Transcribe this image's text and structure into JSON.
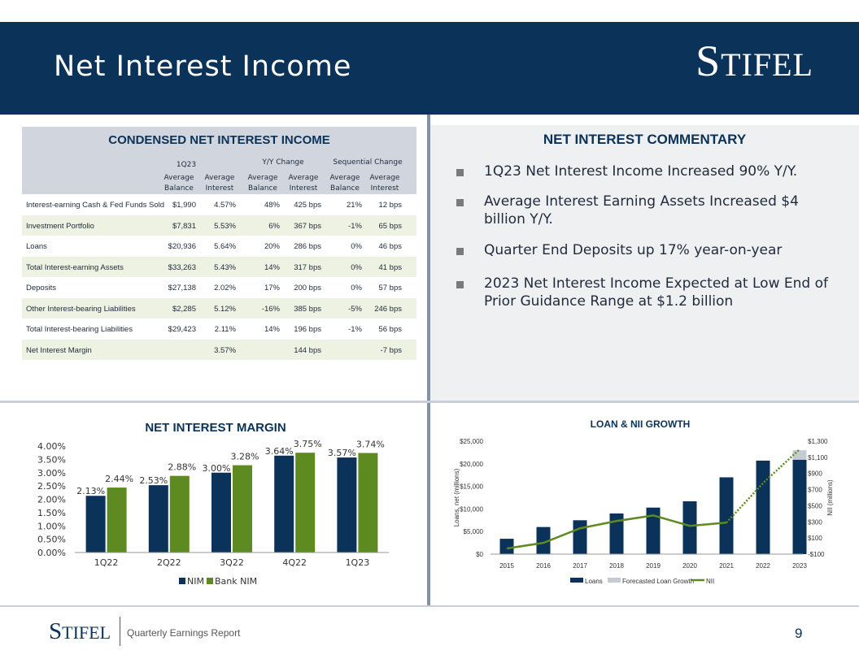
{
  "header": {
    "title": "Net Interest Income",
    "logo_big_s": "S",
    "logo_rest": "TIFEL"
  },
  "table": {
    "title": "CONDENSED NET INTEREST INCOME",
    "group_headers": [
      "1Q23",
      "Y/Y Change",
      "Sequential Change"
    ],
    "sub_headers": [
      [
        "Average",
        "Balance"
      ],
      [
        "Average",
        "Interest"
      ],
      [
        "Average",
        "Balance"
      ],
      [
        "Average",
        "Interest"
      ],
      [
        "Average",
        "Balance"
      ],
      [
        "Average",
        "Interest"
      ]
    ],
    "rows": [
      {
        "label": "Interest-earning Cash & Fed Funds Sold",
        "c1": "$1,990",
        "c2": "4.57%",
        "c3": "48%",
        "c4": "425 bps",
        "c5": "21%",
        "c6": "12 bps"
      },
      {
        "label": "Investment Portfolio",
        "c1": "$7,831",
        "c2": "5.53%",
        "c3": "6%",
        "c4": "367 bps",
        "c5": "-1%",
        "c6": "65 bps"
      },
      {
        "label": "Loans",
        "c1": "$20,936",
        "c2": "5.64%",
        "c3": "20%",
        "c4": "286 bps",
        "c5": "0%",
        "c6": "46 bps"
      },
      {
        "label": "Total Interest-earning Assets",
        "c1": "$33,263",
        "c2": "5.43%",
        "c3": "14%",
        "c4": "317 bps",
        "c5": "0%",
        "c6": "41 bps"
      },
      {
        "label": "Deposits",
        "c1": "$27,138",
        "c2": "2.02%",
        "c3": "17%",
        "c4": "200 bps",
        "c5": "0%",
        "c6": "57 bps"
      },
      {
        "label": "Other Interest-bearing Liabilities",
        "c1": "$2,285",
        "c2": "5.12%",
        "c3": "-16%",
        "c4": "385 bps",
        "c5": "-5%",
        "c6": "246 bps"
      },
      {
        "label": "Total Interest-bearing Liabilities",
        "c1": "$29,423",
        "c2": "2.11%",
        "c3": "14%",
        "c4": "196 bps",
        "c5": "-1%",
        "c6": "56 bps"
      },
      {
        "label": "Net Interest Margin",
        "c1": "",
        "c2": "3.57%",
        "c3": "",
        "c4": "144 bps",
        "c5": "",
        "c6": "-7 bps"
      }
    ]
  },
  "commentary": {
    "title": "NET INTEREST COMMENTARY",
    "bullets": [
      "1Q23 Net Interest Income Increased 90% Y/Y.",
      "Average Interest Earning Assets Increased $4 billion Y/Y.",
      "Quarter End Deposits up 17% year-on-year",
      "2023 Net Interest Income Expected at Low End of Prior Guidance Range at $1.2 billion"
    ]
  },
  "footer": {
    "logo_big_s": "S",
    "logo_rest": "TIFEL",
    "text": "Quarterly Earnings Report",
    "page": "9"
  },
  "colors": {
    "navy": "#0b3258",
    "green": "#5e8a22",
    "light_gray": "#c5cbd3"
  },
  "chart_data": [
    {
      "type": "bar",
      "title": "NET INTEREST MARGIN",
      "categories": [
        "1Q22",
        "2Q22",
        "3Q22",
        "4Q22",
        "1Q23"
      ],
      "series": [
        {
          "name": "NIM",
          "values": [
            2.13,
            2.53,
            3.0,
            3.64,
            3.57
          ],
          "labels": [
            "2.13%",
            "2.53%",
            "3.00%",
            "3.64%",
            "3.57%"
          ],
          "color": "#0b3258"
        },
        {
          "name": "Bank NIM",
          "values": [
            2.44,
            2.88,
            3.28,
            3.75,
            3.74
          ],
          "labels": [
            "2.44%",
            "2.88%",
            "3.28%",
            "3.75%",
            "3.74%"
          ],
          "color": "#5e8a22"
        }
      ],
      "ylim": [
        0,
        4
      ],
      "yticks": [
        "0.00%",
        "0.50%",
        "1.00%",
        "1.50%",
        "2.00%",
        "2.50%",
        "3.00%",
        "3.50%",
        "4.00%"
      ],
      "legend": "bottom",
      "grid": false
    },
    {
      "type": "bar",
      "title": "LOAN & NII GROWTH",
      "categories": [
        "2015",
        "2016",
        "2017",
        "2018",
        "2019",
        "2020",
        "2021",
        "2022",
        "2023"
      ],
      "series": [
        {
          "name": "Loans",
          "axis": "left",
          "values": [
            3400,
            6000,
            7500,
            9000,
            10300,
            11700,
            17000,
            20700,
            20900
          ],
          "color": "#0b3258"
        },
        {
          "name": "Forecasted Loan Growth",
          "axis": "left",
          "values": [
            0,
            0,
            0,
            0,
            0,
            0,
            0,
            0,
            2100
          ],
          "color": "#c5cbd3"
        },
        {
          "name": "NII",
          "axis": "right",
          "type": "line",
          "values": [
            -30,
            40,
            220,
            310,
            380,
            250,
            290,
            780,
            1200
          ],
          "color": "#5e8a22",
          "forecast_from": "2022"
        }
      ],
      "ylabel": "Loans, net (millions)",
      "y2label": "NII (millions)",
      "ylim": [
        0,
        25000
      ],
      "y2lim": [
        -100,
        1300
      ],
      "yticks": [
        "$0",
        "$5,000",
        "$10,000",
        "$15,000",
        "$20,000",
        "$25,000"
      ],
      "y2ticks": [
        "-$100",
        "$100",
        "$300",
        "$500",
        "$700",
        "$900",
        "$1,100",
        "$1,300"
      ],
      "legend": "bottom",
      "grid": false
    }
  ]
}
